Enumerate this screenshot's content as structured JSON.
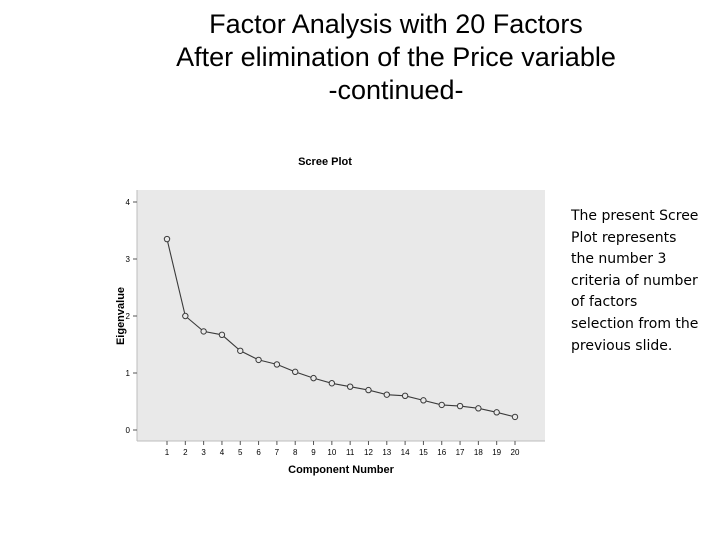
{
  "slide": {
    "title_lines": [
      "Factor Analysis with 20 Factors",
      "After elimination of the Price variable",
      "-continued-"
    ],
    "note": "The present Scree Plot represents the number 3 criteria of number of factors selection from the previous slide."
  },
  "chart_data": {
    "type": "line",
    "title": "Scree Plot",
    "xlabel": "Component Number",
    "ylabel": "Eigenvalue",
    "x": [
      1,
      2,
      3,
      4,
      5,
      6,
      7,
      8,
      9,
      10,
      11,
      12,
      13,
      14,
      15,
      16,
      17,
      18,
      19,
      20
    ],
    "x_tick_labels": [
      "1",
      "2",
      "3",
      "4",
      "5",
      "6",
      "7",
      "8",
      "9",
      "10",
      "11",
      "12",
      "13",
      "14",
      "15",
      "16",
      "17",
      "18",
      "19",
      "20"
    ],
    "series": [
      {
        "values": [
          3.35,
          2.0,
          1.73,
          1.67,
          1.39,
          1.23,
          1.15,
          1.02,
          0.91,
          0.82,
          0.76,
          0.7,
          0.62,
          0.6,
          0.52,
          0.44,
          0.42,
          0.38,
          0.31,
          0.23
        ]
      }
    ],
    "ylim": [
      0,
      4
    ],
    "y_ticks": [
      0,
      1,
      2,
      3,
      4
    ],
    "grid": false,
    "marker": "open-circle",
    "colors": {
      "plot_background": "#e9e9e9",
      "line": "#3a3a3a",
      "text": "#000000"
    }
  }
}
